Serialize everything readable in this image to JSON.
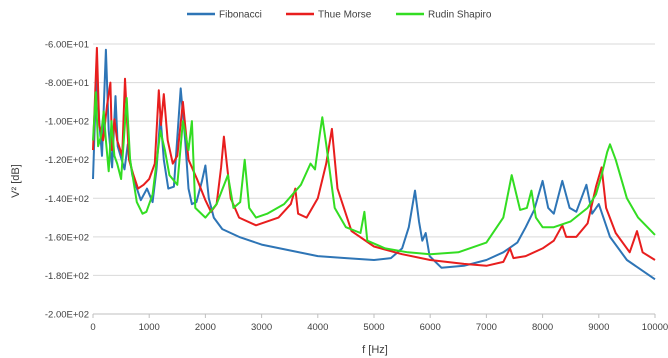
{
  "chart_data": {
    "type": "line",
    "title": "",
    "xlabel": "f [Hz]",
    "ylabel": "V² [dB]",
    "xlim": [
      0,
      10000
    ],
    "ylim": [
      -200,
      -60
    ],
    "xticks": [
      0,
      1000,
      2000,
      3000,
      4000,
      5000,
      6000,
      7000,
      8000,
      9000,
      10000
    ],
    "xtick_labels": [
      "0",
      "1000",
      "2000",
      "3000",
      "4000",
      "5000",
      "6000",
      "7000",
      "8000",
      "9000",
      "10000"
    ],
    "yticks": [
      -200,
      -180,
      -160,
      -140,
      -120,
      -100,
      -80,
      -60
    ],
    "ytick_labels": [
      "-2.00E+02",
      "-1.80E+02",
      "-1.60E+02",
      "-1.40E+02",
      "-1.20E+02",
      "-1.00E+02",
      "-8.00E+01",
      "-6.00E+01"
    ],
    "grid": "horizontal",
    "legend_position": "top",
    "series": [
      {
        "name": "Fibonacci",
        "color": "#2E75B6",
        "points": [
          [
            0,
            -130
          ],
          [
            40,
            -95
          ],
          [
            70,
            -78
          ],
          [
            110,
            -100
          ],
          [
            160,
            -118
          ],
          [
            230,
            -63
          ],
          [
            280,
            -105
          ],
          [
            340,
            -124
          ],
          [
            400,
            -87
          ],
          [
            440,
            -113
          ],
          [
            560,
            -125
          ],
          [
            620,
            -112
          ],
          [
            700,
            -128
          ],
          [
            850,
            -141
          ],
          [
            960,
            -135
          ],
          [
            1060,
            -142
          ],
          [
            1130,
            -125
          ],
          [
            1200,
            -97
          ],
          [
            1260,
            -120
          ],
          [
            1340,
            -135
          ],
          [
            1440,
            -134
          ],
          [
            1560,
            -83
          ],
          [
            1640,
            -110
          ],
          [
            1700,
            -135
          ],
          [
            1760,
            -143
          ],
          [
            1840,
            -142
          ],
          [
            1940,
            -131
          ],
          [
            2000,
            -123
          ],
          [
            2060,
            -140
          ],
          [
            2150,
            -150
          ],
          [
            2300,
            -156
          ],
          [
            2600,
            -160
          ],
          [
            3000,
            -164
          ],
          [
            3500,
            -167
          ],
          [
            4000,
            -170
          ],
          [
            4500,
            -171
          ],
          [
            5000,
            -172
          ],
          [
            5300,
            -171
          ],
          [
            5500,
            -166
          ],
          [
            5620,
            -155
          ],
          [
            5730,
            -136
          ],
          [
            5800,
            -152
          ],
          [
            5860,
            -162
          ],
          [
            5920,
            -158
          ],
          [
            5990,
            -170
          ],
          [
            6200,
            -176
          ],
          [
            6600,
            -175
          ],
          [
            7000,
            -172
          ],
          [
            7300,
            -168
          ],
          [
            7550,
            -163
          ],
          [
            7700,
            -155
          ],
          [
            7850,
            -146
          ],
          [
            8000,
            -131
          ],
          [
            8100,
            -145
          ],
          [
            8200,
            -148
          ],
          [
            8350,
            -131
          ],
          [
            8480,
            -145
          ],
          [
            8600,
            -147
          ],
          [
            8780,
            -133
          ],
          [
            8880,
            -148
          ],
          [
            9000,
            -143
          ],
          [
            9200,
            -160
          ],
          [
            9500,
            -172
          ],
          [
            10000,
            -182
          ]
        ]
      },
      {
        "name": "Thue Morse",
        "color": "#E81E1E",
        "points": [
          [
            0,
            -115
          ],
          [
            70,
            -62
          ],
          [
            110,
            -102
          ],
          [
            180,
            -110
          ],
          [
            250,
            -92
          ],
          [
            310,
            -80
          ],
          [
            340,
            -115
          ],
          [
            380,
            -99
          ],
          [
            430,
            -110
          ],
          [
            520,
            -118
          ],
          [
            570,
            -78
          ],
          [
            640,
            -120
          ],
          [
            720,
            -128
          ],
          [
            800,
            -135
          ],
          [
            900,
            -133
          ],
          [
            1000,
            -130
          ],
          [
            1100,
            -122
          ],
          [
            1170,
            -84
          ],
          [
            1210,
            -102
          ],
          [
            1260,
            -86
          ],
          [
            1330,
            -110
          ],
          [
            1420,
            -122
          ],
          [
            1500,
            -118
          ],
          [
            1600,
            -90
          ],
          [
            1700,
            -120
          ],
          [
            1850,
            -130
          ],
          [
            2000,
            -141
          ],
          [
            2100,
            -147
          ],
          [
            2200,
            -143
          ],
          [
            2280,
            -124
          ],
          [
            2330,
            -108
          ],
          [
            2380,
            -122
          ],
          [
            2450,
            -140
          ],
          [
            2600,
            -150
          ],
          [
            2900,
            -154
          ],
          [
            3300,
            -150
          ],
          [
            3520,
            -143
          ],
          [
            3600,
            -135
          ],
          [
            3650,
            -148
          ],
          [
            3800,
            -150
          ],
          [
            4000,
            -140
          ],
          [
            4150,
            -122
          ],
          [
            4250,
            -104
          ],
          [
            4350,
            -135
          ],
          [
            4600,
            -157
          ],
          [
            5000,
            -165
          ],
          [
            5500,
            -169
          ],
          [
            6000,
            -172
          ],
          [
            6600,
            -174
          ],
          [
            7000,
            -175
          ],
          [
            7300,
            -173
          ],
          [
            7420,
            -166
          ],
          [
            7480,
            -171
          ],
          [
            7700,
            -170
          ],
          [
            8000,
            -166
          ],
          [
            8200,
            -162
          ],
          [
            8350,
            -154
          ],
          [
            8420,
            -160
          ],
          [
            8600,
            -160
          ],
          [
            8800,
            -153
          ],
          [
            8950,
            -134
          ],
          [
            9050,
            -124
          ],
          [
            9130,
            -145
          ],
          [
            9300,
            -158
          ],
          [
            9550,
            -168
          ],
          [
            9680,
            -157
          ],
          [
            9780,
            -168
          ],
          [
            10000,
            -172
          ]
        ]
      },
      {
        "name": "Rudin Shapiro",
        "color": "#33DD22",
        "points": [
          [
            0,
            -110
          ],
          [
            50,
            -85
          ],
          [
            90,
            -113
          ],
          [
            140,
            -108
          ],
          [
            190,
            -95
          ],
          [
            230,
            -110
          ],
          [
            280,
            -126
          ],
          [
            330,
            -100
          ],
          [
            380,
            -118
          ],
          [
            430,
            -122
          ],
          [
            500,
            -130
          ],
          [
            600,
            -88
          ],
          [
            660,
            -120
          ],
          [
            780,
            -142
          ],
          [
            880,
            -148
          ],
          [
            950,
            -147
          ],
          [
            1060,
            -138
          ],
          [
            1200,
            -105
          ],
          [
            1280,
            -115
          ],
          [
            1360,
            -128
          ],
          [
            1500,
            -133
          ],
          [
            1600,
            -100
          ],
          [
            1700,
            -115
          ],
          [
            1760,
            -100
          ],
          [
            1820,
            -145
          ],
          [
            2000,
            -150
          ],
          [
            2200,
            -143
          ],
          [
            2400,
            -128
          ],
          [
            2500,
            -145
          ],
          [
            2620,
            -142
          ],
          [
            2700,
            -120
          ],
          [
            2780,
            -145
          ],
          [
            2900,
            -150
          ],
          [
            3100,
            -148
          ],
          [
            3400,
            -143
          ],
          [
            3700,
            -133
          ],
          [
            3870,
            -122
          ],
          [
            3950,
            -125
          ],
          [
            4040,
            -106
          ],
          [
            4080,
            -98
          ],
          [
            4150,
            -112
          ],
          [
            4300,
            -145
          ],
          [
            4500,
            -155
          ],
          [
            4760,
            -158
          ],
          [
            4830,
            -147
          ],
          [
            4880,
            -162
          ],
          [
            5200,
            -166
          ],
          [
            5600,
            -168
          ],
          [
            6000,
            -169
          ],
          [
            6500,
            -168
          ],
          [
            7000,
            -163
          ],
          [
            7300,
            -150
          ],
          [
            7450,
            -128
          ],
          [
            7600,
            -146
          ],
          [
            7720,
            -145
          ],
          [
            7800,
            -136
          ],
          [
            7880,
            -150
          ],
          [
            8000,
            -155
          ],
          [
            8200,
            -155
          ],
          [
            8500,
            -152
          ],
          [
            8800,
            -145
          ],
          [
            8950,
            -138
          ],
          [
            9050,
            -128
          ],
          [
            9150,
            -116
          ],
          [
            9200,
            -112
          ],
          [
            9300,
            -120
          ],
          [
            9500,
            -140
          ],
          [
            9700,
            -150
          ],
          [
            10000,
            -159
          ]
        ]
      }
    ]
  }
}
